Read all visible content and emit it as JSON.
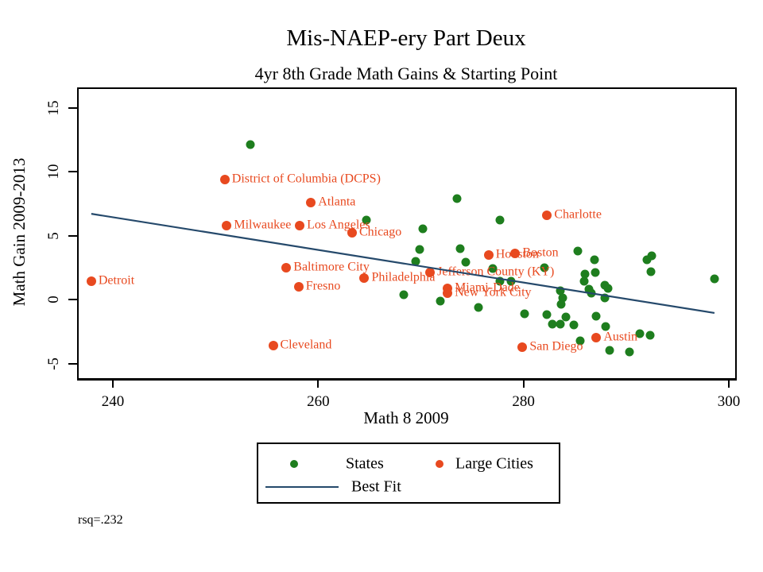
{
  "title": "Mis-NAEP-ery Part Deux",
  "subtitle": "4yr 8th Grade Math Gains & Starting Point",
  "rsq_note": "rsq=.232",
  "axes": {
    "x_label": "Math 8 2009",
    "y_label": "Math Gain 2009-2013"
  },
  "legend": {
    "states_label": "States",
    "cities_label": "Large Cities",
    "fit_label": "Best Fit"
  },
  "colors": {
    "state_green": "#1e7e1e",
    "city_orange": "#e8491f",
    "fit_navy": "#25496b",
    "axis_black": "#000000"
  },
  "chart_data": {
    "type": "scatter",
    "title": "Mis-NAEP-ery Part Deux",
    "subtitle": "4yr 8th Grade Math Gains & Starting Point",
    "xlabel": "Math 8 2009",
    "ylabel": "Math Gain 2009-2013",
    "xlim": [
      236.7,
      301.3
    ],
    "ylim": [
      -6.2,
      16.5
    ],
    "x_ticks": [
      240,
      260,
      280,
      300
    ],
    "y_ticks": [
      -5,
      0,
      5,
      10,
      15
    ],
    "grid": false,
    "legend_position": "bottom",
    "annotation": "rsq=.232",
    "series": [
      {
        "name": "States",
        "marker": "circle",
        "color": "#1e7e1e",
        "points": [
          [
            253.4,
            12.1
          ],
          [
            264.7,
            6.2
          ],
          [
            270.2,
            5.5
          ],
          [
            273.5,
            7.9
          ],
          [
            277.7,
            6.2
          ],
          [
            269.9,
            3.9
          ],
          [
            273.8,
            4.0
          ],
          [
            269.5,
            3.0
          ],
          [
            274.4,
            2.9
          ],
          [
            277.0,
            2.4
          ],
          [
            282.0,
            2.5
          ],
          [
            285.3,
            3.8
          ],
          [
            286.9,
            3.1
          ],
          [
            277.7,
            1.4
          ],
          [
            278.8,
            1.4
          ],
          [
            268.3,
            0.4
          ],
          [
            271.9,
            -0.1
          ],
          [
            275.6,
            -0.6
          ],
          [
            286.0,
            2.0
          ],
          [
            287.0,
            2.1
          ],
          [
            285.9,
            1.45
          ],
          [
            286.4,
            0.8
          ],
          [
            286.6,
            0.5
          ],
          [
            287.9,
            1.1
          ],
          [
            288.2,
            0.9
          ],
          [
            287.9,
            0.15
          ],
          [
            283.6,
            0.7
          ],
          [
            283.8,
            0.1
          ],
          [
            283.7,
            -0.35
          ],
          [
            284.1,
            -1.35
          ],
          [
            292.0,
            3.1
          ],
          [
            292.5,
            3.4
          ],
          [
            292.4,
            2.2
          ],
          [
            298.6,
            1.6
          ],
          [
            280.1,
            -1.1
          ],
          [
            282.3,
            -1.15
          ],
          [
            282.8,
            -1.9
          ],
          [
            283.6,
            -1.9
          ],
          [
            284.9,
            -2.0
          ],
          [
            287.1,
            -1.3
          ],
          [
            288.0,
            -2.1
          ],
          [
            285.5,
            -3.2
          ],
          [
            291.3,
            -2.7
          ],
          [
            292.3,
            -2.8
          ],
          [
            288.4,
            -4.0
          ],
          [
            290.3,
            -4.1
          ]
        ]
      },
      {
        "name": "Large Cities",
        "marker": "circle",
        "color": "#e8491f",
        "labeled_points": [
          {
            "label": "Detroit",
            "x": 237.9,
            "y": 1.4
          },
          {
            "label": "District of Columbia (DCPS)",
            "x": 250.9,
            "y": 9.4
          },
          {
            "label": "Milwaukee",
            "x": 251.1,
            "y": 5.8
          },
          {
            "label": "Cleveland",
            "x": 255.6,
            "y": -3.6
          },
          {
            "label": "Baltimore City",
            "x": 256.9,
            "y": 2.5
          },
          {
            "label": "Fresno",
            "x": 258.1,
            "y": 1.0
          },
          {
            "label": "Los Angeles",
            "x": 258.2,
            "y": 5.8
          },
          {
            "label": "Atlanta",
            "x": 259.3,
            "y": 7.6
          },
          {
            "label": "Chicago",
            "x": 263.3,
            "y": 5.2
          },
          {
            "label": "Philadelphia",
            "x": 264.5,
            "y": 1.7
          },
          {
            "label": "Jefferson County (KY)",
            "x": 270.9,
            "y": 2.1
          },
          {
            "label": "Miami-Dade",
            "x": 272.6,
            "y": 0.9
          },
          {
            "label": "New York City",
            "x": 272.6,
            "y": 0.5
          },
          {
            "label": "Houston",
            "x": 276.6,
            "y": 3.5
          },
          {
            "label": "Boston",
            "x": 279.2,
            "y": 3.6
          },
          {
            "label": "San Diego",
            "x": 279.9,
            "y": -3.7
          },
          {
            "label": "Charlotte",
            "x": 282.3,
            "y": 6.6
          },
          {
            "label": "Austin",
            "x": 287.1,
            "y": -3.0
          }
        ]
      },
      {
        "name": "Best Fit",
        "type": "line",
        "color": "#25496b",
        "x": [
          237.9,
          298.6
        ],
        "y": [
          6.7,
          -1.05
        ]
      }
    ]
  }
}
